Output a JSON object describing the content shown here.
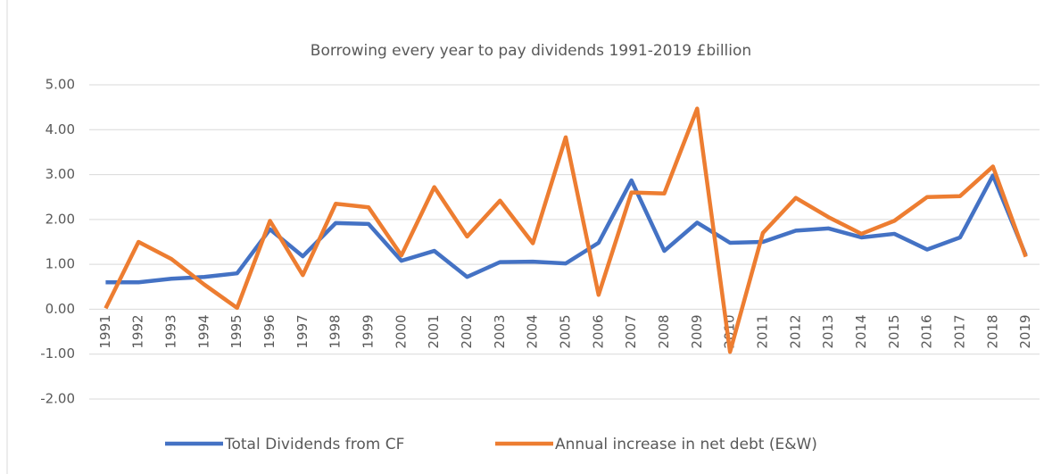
{
  "chart_data": {
    "type": "line",
    "title": "Borrowing every year to pay dividends 1991-2019 £billion",
    "categories": [
      "1991",
      "1992",
      "1993",
      "1994",
      "1995",
      "1996",
      "1997",
      "1998",
      "1999",
      "2000",
      "2001",
      "2002",
      "2003",
      "2004",
      "2005",
      "2006",
      "2007",
      "2008",
      "2009",
      "2010",
      "2011",
      "2012",
      "2013",
      "2014",
      "2015",
      "2016",
      "2017",
      "2018",
      "2019"
    ],
    "series": [
      {
        "name": "Total Dividends from CF",
        "color": "#4472c4",
        "values": [
          0.6,
          0.6,
          0.68,
          0.72,
          0.8,
          1.78,
          1.18,
          1.92,
          1.9,
          1.08,
          1.3,
          0.72,
          1.05,
          1.06,
          1.02,
          1.48,
          2.87,
          1.3,
          1.93,
          1.48,
          1.5,
          1.75,
          1.8,
          1.6,
          1.68,
          1.33,
          1.6,
          2.98,
          1.2
        ]
      },
      {
        "name": "Annual increase in net debt (E&W)",
        "color": "#ed7d31",
        "values": [
          0.02,
          1.5,
          1.12,
          0.55,
          0.03,
          1.97,
          0.76,
          2.35,
          2.27,
          1.2,
          2.72,
          1.62,
          2.42,
          1.47,
          3.83,
          0.32,
          2.6,
          2.58,
          4.47,
          -0.95,
          1.7,
          2.48,
          2.05,
          1.68,
          1.97,
          2.5,
          2.52,
          3.18,
          1.17
        ]
      }
    ],
    "ylim": [
      -2,
      5
    ],
    "yticks": [
      {
        "value": -2,
        "label": "-2.00"
      },
      {
        "value": -1,
        "label": "-1.00"
      },
      {
        "value": 0,
        "label": "0.00"
      },
      {
        "value": 1,
        "label": "1.00"
      },
      {
        "value": 2,
        "label": "2.00"
      },
      {
        "value": 3,
        "label": "3.00"
      },
      {
        "value": 4,
        "label": "4.00"
      },
      {
        "value": 5,
        "label": "5.00"
      }
    ],
    "grid": true,
    "legend": "bottom"
  }
}
